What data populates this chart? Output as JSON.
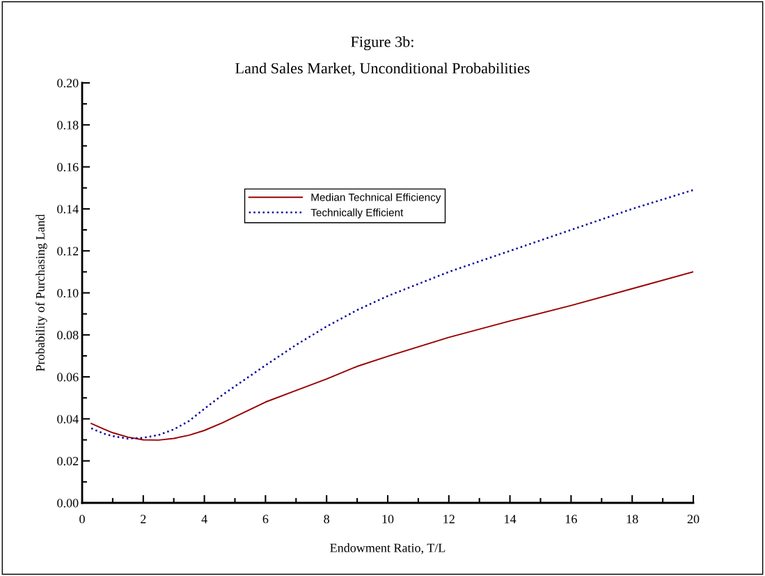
{
  "chart_data": {
    "type": "line",
    "title": "Figure 3b:",
    "subtitle": "Land Sales Market, Unconditional Probabilities",
    "xlabel": "Endowment Ratio, T/L",
    "ylabel": "Probability of Purchasing Land",
    "xlim": [
      0,
      20
    ],
    "xticks": [
      0,
      2,
      4,
      6,
      8,
      10,
      12,
      14,
      16,
      18,
      20
    ],
    "ylim": [
      0,
      0.2
    ],
    "yticks": [
      {
        "value": 0,
        "label": "0.00"
      },
      {
        "value": 0.02,
        "label": "0.02"
      },
      {
        "value": 0.04,
        "label": "0.04"
      },
      {
        "value": 0.06,
        "label": "0.06"
      },
      {
        "value": 0.08,
        "label": "0.08"
      },
      {
        "value": 0.1,
        "label": "0.10"
      },
      {
        "value": 0.12,
        "label": "0.12"
      },
      {
        "value": 0.14,
        "label": "0.14"
      },
      {
        "value": 0.16,
        "label": "0.16"
      },
      {
        "value": 0.18,
        "label": "0.18"
      },
      {
        "value": 0.2,
        "label": "0.20"
      }
    ],
    "grid": false,
    "legend": "top",
    "marker": "none",
    "x": [
      0.3,
      0.7,
      1.0,
      1.5,
      2.0,
      2.5,
      3.0,
      3.5,
      4.0,
      4.6,
      5.0,
      6.0,
      7.0,
      8.0,
      9.0,
      10.0,
      12.0,
      14.0,
      16.0,
      18.0,
      20.0
    ],
    "series": [
      {
        "name": "Median Technical Efficiency",
        "color": "#990000",
        "line_style": "solid",
        "values": [
          0.0378,
          0.0352,
          0.0334,
          0.0313,
          0.03,
          0.0299,
          0.0307,
          0.0322,
          0.0345,
          0.0382,
          0.041,
          0.048,
          0.0535,
          0.059,
          0.065,
          0.0698,
          0.0788,
          0.0866,
          0.094,
          0.102,
          0.11
        ]
      },
      {
        "name": "Technically Efficient",
        "color": "#000099",
        "line_style": "dotted",
        "values": [
          0.0355,
          0.033,
          0.0318,
          0.0306,
          0.031,
          0.0323,
          0.035,
          0.039,
          0.0448,
          0.0515,
          0.0555,
          0.0655,
          0.0752,
          0.084,
          0.0918,
          0.0985,
          0.11,
          0.12,
          0.13,
          0.14,
          0.149
        ]
      }
    ]
  }
}
